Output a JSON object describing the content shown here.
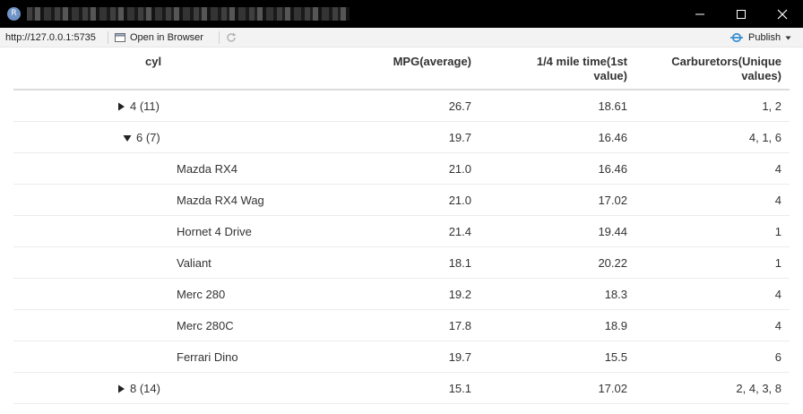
{
  "window": {
    "app_icon_letter": "R"
  },
  "toolbar": {
    "url": "http://127.0.0.1:5735",
    "open_in_browser": "Open in Browser",
    "publish": "Publish"
  },
  "table": {
    "headers": {
      "cyl": "cyl",
      "mpg": "MPG(average)",
      "qsec_line1": "1/4 mile time(1st",
      "qsec_line2": "value)",
      "carb_line1": "Carburetors(Unique",
      "carb_line2": "values)"
    },
    "rows": [
      {
        "type": "group",
        "expanded": false,
        "label": "4 (11)",
        "mpg": "26.7",
        "qsec": "18.61",
        "carb": "1, 2"
      },
      {
        "type": "group",
        "expanded": true,
        "label": "6 (7)",
        "mpg": "19.7",
        "qsec": "16.46",
        "carb": "4, 1, 6"
      },
      {
        "type": "detail",
        "label": "Mazda RX4",
        "mpg": "21.0",
        "qsec": "16.46",
        "carb": "4"
      },
      {
        "type": "detail",
        "label": "Mazda RX4 Wag",
        "mpg": "21.0",
        "qsec": "17.02",
        "carb": "4"
      },
      {
        "type": "detail",
        "label": "Hornet 4 Drive",
        "mpg": "21.4",
        "qsec": "19.44",
        "carb": "1"
      },
      {
        "type": "detail",
        "label": "Valiant",
        "mpg": "18.1",
        "qsec": "20.22",
        "carb": "1"
      },
      {
        "type": "detail",
        "label": "Merc 280",
        "mpg": "19.2",
        "qsec": "18.3",
        "carb": "4"
      },
      {
        "type": "detail",
        "label": "Merc 280C",
        "mpg": "17.8",
        "qsec": "18.9",
        "carb": "4"
      },
      {
        "type": "detail",
        "label": "Ferrari Dino",
        "mpg": "19.7",
        "qsec": "15.5",
        "carb": "6"
      },
      {
        "type": "group",
        "expanded": false,
        "label": "8 (14)",
        "mpg": "15.1",
        "qsec": "17.02",
        "carb": "2, 4, 3, 8"
      }
    ]
  },
  "colors": {
    "titlebar": "#000000",
    "toolbar": "#f3f3f3",
    "text": "#333333",
    "publish_icon": "#3a8fd1"
  }
}
